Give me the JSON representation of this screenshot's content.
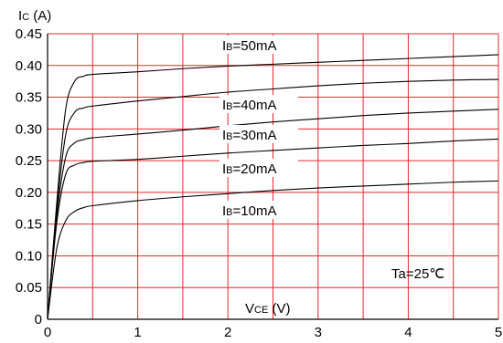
{
  "chart_data": {
    "type": "line",
    "ylabel_main": "I",
    "ylabel_sub": "C",
    "ylabel_unit": " (A)",
    "xlabel_main": "V",
    "xlabel_sub": "CE",
    "xlabel_unit": " (V)",
    "xlim": [
      0,
      5
    ],
    "ylim": [
      0,
      0.45
    ],
    "xticks": [
      "0",
      "1",
      "2",
      "3",
      "4",
      "5"
    ],
    "yticks": [
      "0",
      "0.05",
      "0.10",
      "0.15",
      "0.20",
      "0.25",
      "0.30",
      "0.35",
      "0.40",
      "0.45"
    ],
    "grid": true,
    "grid_color": "#e8272e",
    "annotation": "Ta=25℃",
    "series": [
      {
        "label_main": "I",
        "label_sub": "B",
        "label_value": "=10mA",
        "x": [
          0,
          0.1,
          0.2,
          0.3,
          0.4,
          0.5,
          1.0,
          1.5,
          2.0,
          2.5,
          3.0,
          3.5,
          4.0,
          4.5,
          5.0
        ],
        "y": [
          0,
          0.11,
          0.155,
          0.17,
          0.176,
          0.179,
          0.187,
          0.193,
          0.198,
          0.203,
          0.207,
          0.21,
          0.213,
          0.216,
          0.218
        ]
      },
      {
        "label_main": "I",
        "label_sub": "B",
        "label_value": "=20mA",
        "x": [
          0,
          0.1,
          0.2,
          0.3,
          0.4,
          0.5,
          1.0,
          1.5,
          2.0,
          2.5,
          3.0,
          3.5,
          4.0,
          4.5,
          5.0
        ],
        "y": [
          0,
          0.15,
          0.228,
          0.243,
          0.247,
          0.249,
          0.252,
          0.257,
          0.262,
          0.266,
          0.27,
          0.274,
          0.277,
          0.281,
          0.284
        ]
      },
      {
        "label_main": "I",
        "label_sub": "B",
        "label_value": "=30mA",
        "x": [
          0,
          0.1,
          0.2,
          0.3,
          0.4,
          0.5,
          1.0,
          1.5,
          2.0,
          2.5,
          3.0,
          3.5,
          4.0,
          4.5,
          5.0
        ],
        "y": [
          0,
          0.16,
          0.255,
          0.278,
          0.283,
          0.286,
          0.292,
          0.298,
          0.305,
          0.311,
          0.316,
          0.321,
          0.325,
          0.328,
          0.331
        ]
      },
      {
        "label_main": "I",
        "label_sub": "B",
        "label_value": "=40mA",
        "x": [
          0,
          0.1,
          0.2,
          0.3,
          0.4,
          0.5,
          1.0,
          1.5,
          2.0,
          2.5,
          3.0,
          3.5,
          4.0,
          4.5,
          5.0
        ],
        "y": [
          0,
          0.17,
          0.29,
          0.326,
          0.333,
          0.336,
          0.344,
          0.351,
          0.358,
          0.363,
          0.368,
          0.372,
          0.375,
          0.377,
          0.378
        ]
      },
      {
        "label_main": "I",
        "label_sub": "B",
        "label_value": "=50mA",
        "x": [
          0,
          0.1,
          0.2,
          0.3,
          0.4,
          0.5,
          1.0,
          1.5,
          2.0,
          2.5,
          3.0,
          3.5,
          4.0,
          4.5,
          5.0
        ],
        "y": [
          0,
          0.18,
          0.33,
          0.375,
          0.383,
          0.386,
          0.39,
          0.395,
          0.399,
          0.402,
          0.405,
          0.408,
          0.411,
          0.414,
          0.417
        ]
      }
    ]
  }
}
